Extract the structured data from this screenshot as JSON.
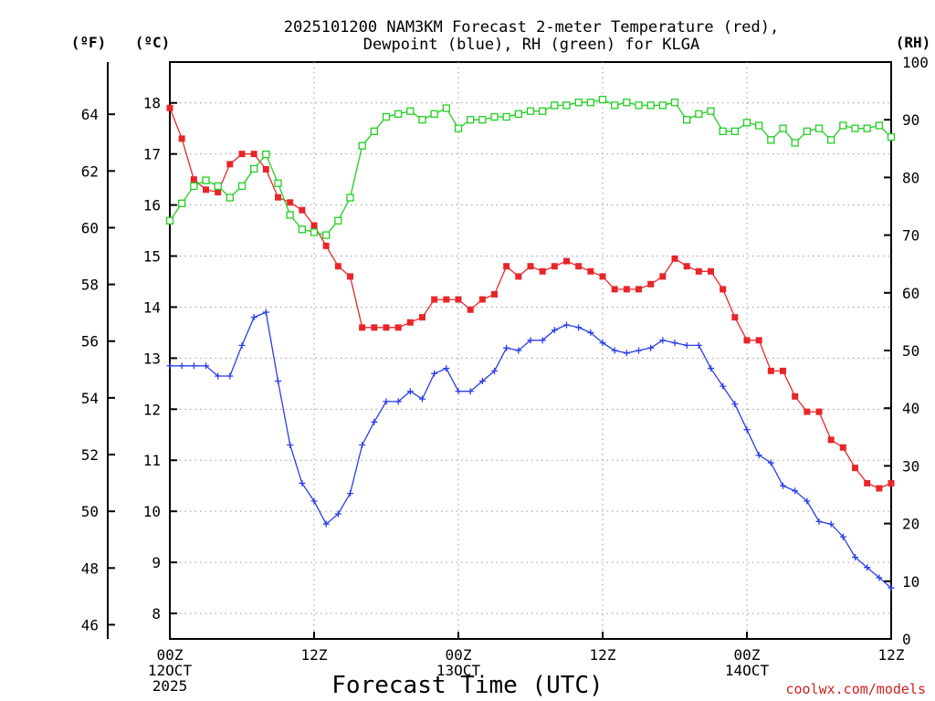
{
  "chart_data": {
    "type": "line",
    "title": [
      "2025101200 NAM3KM Forecast 2-meter Temperature (red),",
      "Dewpoint (blue), RH (green) for KLGA"
    ],
    "xlabel": "Forecast Time (UTC)",
    "credit": "coolwx.com/models",
    "x_hours": [
      0,
      1,
      2,
      3,
      4,
      5,
      6,
      7,
      8,
      9,
      10,
      11,
      12,
      13,
      14,
      15,
      16,
      17,
      18,
      19,
      20,
      21,
      22,
      23,
      24,
      25,
      26,
      27,
      28,
      29,
      30,
      31,
      32,
      33,
      34,
      35,
      36,
      37,
      38,
      39,
      40,
      41,
      42,
      43,
      44,
      45,
      46,
      47,
      48,
      49,
      50,
      51,
      52,
      53,
      54,
      55,
      56,
      57,
      58,
      59,
      60
    ],
    "x_range": [
      0,
      60
    ],
    "x_ticks": [
      {
        "hour": 0,
        "lines": [
          "00Z",
          "12OCT",
          "2025"
        ]
      },
      {
        "hour": 12,
        "lines": [
          "12Z"
        ]
      },
      {
        "hour": 24,
        "lines": [
          "00Z",
          "13OCT"
        ]
      },
      {
        "hour": 36,
        "lines": [
          "12Z"
        ]
      },
      {
        "hour": 48,
        "lines": [
          "00Z",
          "14OCT"
        ]
      },
      {
        "hour": 60,
        "lines": [
          "12Z"
        ]
      }
    ],
    "axes": {
      "celsius": {
        "unit_label": "(ºC)",
        "range": [
          7.5,
          18.8
        ],
        "ticks": [
          8,
          9,
          10,
          11,
          12,
          13,
          14,
          15,
          16,
          17,
          18
        ]
      },
      "fahrenheit": {
        "unit_label": "(ºF)",
        "ticks": [
          46,
          48,
          50,
          52,
          54,
          56,
          58,
          60,
          62,
          64
        ]
      },
      "rh": {
        "unit_label": "(RH)",
        "range": [
          0,
          100
        ],
        "ticks": [
          0,
          10,
          20,
          30,
          40,
          50,
          60,
          70,
          80,
          90,
          100
        ]
      }
    },
    "grid": true,
    "series": [
      {
        "name": "2-meter Temperature",
        "units": "C",
        "color": "#e8262a",
        "marker": "filled-square",
        "values": [
          17.9,
          17.3,
          16.5,
          16.3,
          16.25,
          16.8,
          17.0,
          17.0,
          16.7,
          16.15,
          16.05,
          15.9,
          15.6,
          15.2,
          14.8,
          14.6,
          13.6,
          13.6,
          13.6,
          13.6,
          13.7,
          13.8,
          14.15,
          14.15,
          14.15,
          13.95,
          14.15,
          14.25,
          14.8,
          14.6,
          14.8,
          14.7,
          14.8,
          14.9,
          14.8,
          14.7,
          14.6,
          14.35,
          14.35,
          14.35,
          14.45,
          14.6,
          14.95,
          14.8,
          14.7,
          14.7,
          14.35,
          13.8,
          13.35,
          13.35,
          12.75,
          12.75,
          12.25,
          11.95,
          11.95,
          11.4,
          11.25,
          10.85,
          10.55,
          10.45,
          10.55
        ]
      },
      {
        "name": "Dewpoint",
        "units": "C",
        "color": "#2a3ee8",
        "marker": "plus",
        "values": [
          12.85,
          12.85,
          12.85,
          12.85,
          12.65,
          12.65,
          13.25,
          13.8,
          13.9,
          12.55,
          11.3,
          10.55,
          10.2,
          9.75,
          9.95,
          10.35,
          11.3,
          11.75,
          12.15,
          12.15,
          12.35,
          12.2,
          12.7,
          12.8,
          12.35,
          12.35,
          12.55,
          12.75,
          13.2,
          13.15,
          13.35,
          13.35,
          13.55,
          13.65,
          13.6,
          13.5,
          13.3,
          13.15,
          13.1,
          13.15,
          13.2,
          13.35,
          13.3,
          13.25,
          13.25,
          12.8,
          12.45,
          12.1,
          11.6,
          11.1,
          10.95,
          10.5,
          10.4,
          10.2,
          9.8,
          9.75,
          9.5,
          9.1,
          8.9,
          8.7,
          8.5
        ]
      },
      {
        "name": "RH",
        "units": "%",
        "color": "#20d020",
        "marker": "open-square",
        "values": [
          72.5,
          75.5,
          78.5,
          79.5,
          78.5,
          76.5,
          78.5,
          81.5,
          84.0,
          79.0,
          73.5,
          71.0,
          70.5,
          70.0,
          72.5,
          76.5,
          85.5,
          88.0,
          90.5,
          91.0,
          91.5,
          90.0,
          91.0,
          92.0,
          88.5,
          90.0,
          90.0,
          90.5,
          90.5,
          91.0,
          91.5,
          91.5,
          92.5,
          92.5,
          93.0,
          93.0,
          93.5,
          92.5,
          93.0,
          92.5,
          92.5,
          92.5,
          93.0,
          90.0,
          91.0,
          91.5,
          88.0,
          88.0,
          89.5,
          89.0,
          86.5,
          88.5,
          86.0,
          88.0,
          88.5,
          86.5,
          89.0,
          88.5,
          88.5,
          89.0,
          87.0
        ]
      }
    ]
  }
}
